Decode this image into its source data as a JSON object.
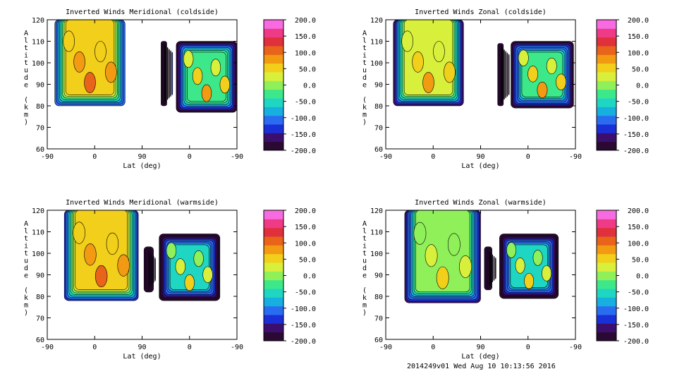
{
  "colors": {
    "colormap": [
      "#2a0a33",
      "#3c0e6e",
      "#1b2fd6",
      "#2a6cf0",
      "#17aee0",
      "#1fd6c2",
      "#3ce88a",
      "#8ff05a",
      "#d8f03c",
      "#f2cf1a",
      "#f29a12",
      "#e8641a",
      "#e0303c",
      "#ef3a86",
      "#f86be0"
    ],
    "contour_line": "#000000"
  },
  "footer": "2014249v01 Wed Aug 10 10:13:56 2016",
  "chart_data": [
    {
      "type": "heatmap",
      "title": "Inverted Winds Meridional (coldside)",
      "xlabel": "Lat (deg)",
      "ylabel": "Altitude (km)",
      "xticks": [
        "-90",
        "0",
        "90",
        "0",
        "-90"
      ],
      "yticks": [
        "60",
        "70",
        "80",
        "90",
        "100",
        "110",
        "120"
      ],
      "ylim": [
        60,
        120
      ],
      "colorbar_ticks": [
        "200.0",
        "150.0",
        "100.0",
        "50.0",
        "0.0",
        "-50.0",
        "-100.0",
        "-150.0",
        "-200.0"
      ],
      "colorbar_range": [
        -200,
        200
      ]
    },
    {
      "type": "heatmap",
      "title": "Inverted Winds Zonal (coldside)",
      "xlabel": "Lat (deg)",
      "ylabel": "Altitude (km)",
      "xticks": [
        "-90",
        "0",
        "90",
        "0",
        "-90"
      ],
      "yticks": [
        "60",
        "70",
        "80",
        "90",
        "100",
        "110",
        "120"
      ],
      "ylim": [
        60,
        120
      ],
      "colorbar_ticks": [
        "200.0",
        "150.0",
        "100.0",
        "50.0",
        "0.0",
        "-50.0",
        "-100.0",
        "-150.0",
        "-200.0"
      ],
      "colorbar_range": [
        -200,
        200
      ]
    },
    {
      "type": "heatmap",
      "title": "Inverted Winds Meridional (warmside)",
      "xlabel": "Lat (deg)",
      "ylabel": "Altitude (km)",
      "xticks": [
        "-90",
        "0",
        "90",
        "0",
        "-90"
      ],
      "yticks": [
        "60",
        "70",
        "80",
        "90",
        "100",
        "110",
        "120"
      ],
      "ylim": [
        60,
        120
      ],
      "colorbar_ticks": [
        "200.0",
        "150.0",
        "100.0",
        "50.0",
        "0.0",
        "-50.0",
        "-100.0",
        "-150.0",
        "-200.0"
      ],
      "colorbar_range": [
        -200,
        200
      ]
    },
    {
      "type": "heatmap",
      "title": "Inverted Winds Zonal (warmside)",
      "xlabel": "Lat (deg)",
      "ylabel": "Altitude (km)",
      "xticks": [
        "-90",
        "0",
        "90",
        "0",
        "-90"
      ],
      "yticks": [
        "60",
        "70",
        "80",
        "90",
        "100",
        "110",
        "120"
      ],
      "ylim": [
        60,
        120
      ],
      "colorbar_ticks": [
        "200.0",
        "150.0",
        "100.0",
        "50.0",
        "0.0",
        "-50.0",
        "-100.0",
        "-150.0",
        "-200.0"
      ],
      "colorbar_range": [
        -200,
        200
      ]
    }
  ]
}
